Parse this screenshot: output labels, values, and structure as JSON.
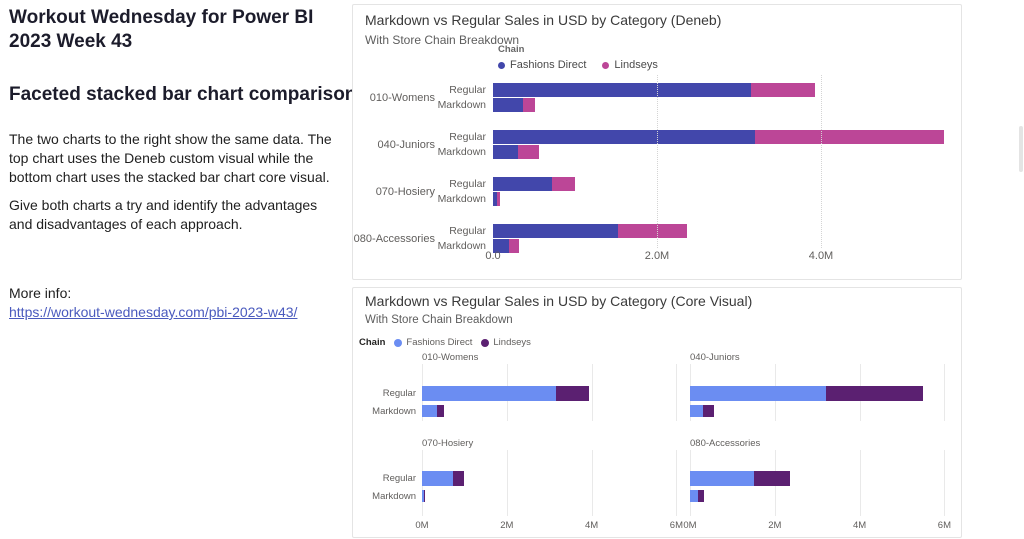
{
  "left_panel": {
    "title": "Workout Wednesday for Power BI 2023 Week 43",
    "subtitle": "Faceted stacked bar chart comparison",
    "paragraph1": "The two charts to the right show the same data. The top chart uses the Deneb custom visual while the bottom chart uses the stacked bar chart core visual.",
    "paragraph2": "Give both charts a try and identify the advantages and disadvantages of each approach.",
    "more_info_label": "More info:",
    "link": "https://workout-wednesday.com/pbi-2023-w43/"
  },
  "colors": {
    "deneb_fashions_direct": "#4247ab",
    "deneb_lindseys": "#bc4697",
    "core_fashions_direct": "#6b8df2",
    "core_lindseys": "#5b2071",
    "link": "#4a5abe",
    "axis_label_gray": "#605e5c"
  },
  "chart_data": [
    {
      "type": "bar",
      "variant": "deneb-faceted-stacked-horizontal",
      "title": "Markdown vs Regular Sales in USD by Category (Deneb)",
      "subtitle": "With Store Chain Breakdown",
      "legend_title": "Chain",
      "legend_position": "top-center",
      "series": [
        {
          "name": "Fashions Direct",
          "color": "#4247ab"
        },
        {
          "name": "Lindseys",
          "color": "#bc4697"
        }
      ],
      "categories": [
        "010-Womens",
        "040-Juniors",
        "070-Hosiery",
        "080-Accessories"
      ],
      "bar_types": [
        "Regular",
        "Markdown"
      ],
      "xlim": [
        0,
        5700000
      ],
      "x_ticks": [
        "0.0",
        "2.0M",
        "4.0M"
      ],
      "x_tick_values": [
        0,
        2000000,
        4000000
      ],
      "grid": "dotted vertical at 2.0M and 4.0M",
      "values_usd": [
        {
          "category": "010-Womens",
          "regular": {
            "fashions_direct": 3150000,
            "lindseys": 780000
          },
          "markdown": {
            "fashions_direct": 360000,
            "lindseys": 150000
          }
        },
        {
          "category": "040-Juniors",
          "regular": {
            "fashions_direct": 3200000,
            "lindseys": 2300000
          },
          "markdown": {
            "fashions_direct": 300000,
            "lindseys": 260000
          }
        },
        {
          "category": "070-Hosiery",
          "regular": {
            "fashions_direct": 720000,
            "lindseys": 280000
          },
          "markdown": {
            "fashions_direct": 50000,
            "lindseys": 30000
          }
        },
        {
          "category": "080-Accessories",
          "regular": {
            "fashions_direct": 1520000,
            "lindseys": 840000
          },
          "markdown": {
            "fashions_direct": 200000,
            "lindseys": 120000
          }
        }
      ]
    },
    {
      "type": "bar",
      "variant": "core-visual-small-multiples-stacked-horizontal",
      "title": "Markdown vs Regular Sales in USD by Category (Core Visual)",
      "subtitle": "With Store Chain Breakdown",
      "legend_title": "Chain",
      "legend_position": "top-left",
      "series": [
        {
          "name": "Fashions Direct",
          "color": "#6b8df2"
        },
        {
          "name": "Lindseys",
          "color": "#5b2071"
        }
      ],
      "categories": [
        "010-Womens",
        "040-Juniors",
        "070-Hosiery",
        "080-Accessories"
      ],
      "bar_types": [
        "Regular",
        "Markdown"
      ],
      "xlim": [
        0,
        6000000
      ],
      "x_ticks": [
        "0M",
        "2M",
        "4M",
        "6M"
      ],
      "x_tick_values": [
        0,
        2000000,
        4000000,
        6000000
      ],
      "grid": "solid light vertical gridlines per facet",
      "values_usd": [
        {
          "category": "010-Womens",
          "regular": {
            "fashions_direct": 3150000,
            "lindseys": 780000
          },
          "markdown": {
            "fashions_direct": 360000,
            "lindseys": 150000
          }
        },
        {
          "category": "040-Juniors",
          "regular": {
            "fashions_direct": 3200000,
            "lindseys": 2300000
          },
          "markdown": {
            "fashions_direct": 300000,
            "lindseys": 260000
          }
        },
        {
          "category": "070-Hosiery",
          "regular": {
            "fashions_direct": 720000,
            "lindseys": 280000
          },
          "markdown": {
            "fashions_direct": 50000,
            "lindseys": 30000
          }
        },
        {
          "category": "080-Accessories",
          "regular": {
            "fashions_direct": 1520000,
            "lindseys": 840000
          },
          "markdown": {
            "fashions_direct": 200000,
            "lindseys": 120000
          }
        }
      ]
    }
  ]
}
